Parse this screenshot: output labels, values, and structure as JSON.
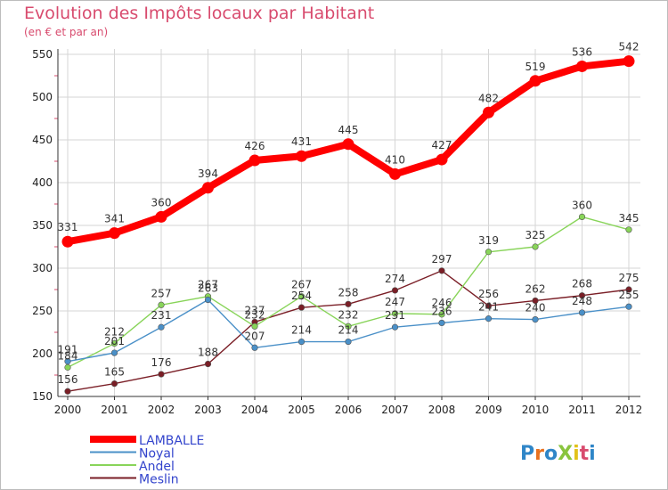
{
  "title": "Evolution des Impôts locaux par Habitant",
  "subtitle": "(en € et par an)",
  "logo": {
    "text": "ProXiti"
  },
  "chart_data": {
    "type": "line",
    "title": "Evolution des Impôts locaux par Habitant",
    "subtitle": "(en € et par an)",
    "x": [
      "2000",
      "2001",
      "2002",
      "2003",
      "2004",
      "2005",
      "2006",
      "2007",
      "2008",
      "2009",
      "2010",
      "2011",
      "2012"
    ],
    "ylim": [
      150,
      550
    ],
    "yticks": [
      150,
      200,
      250,
      300,
      350,
      400,
      450,
      500,
      550
    ],
    "grid": true,
    "legend_position": "bottom-left",
    "series": [
      {
        "name": "LAMBALLE",
        "color": "#ff0000",
        "values": [
          331,
          341,
          360,
          394,
          426,
          431,
          445,
          410,
          427,
          482,
          519,
          536,
          542
        ]
      },
      {
        "name": "Noyal",
        "color": "#4a90c8",
        "values": [
          191,
          201,
          231,
          263,
          207,
          214,
          214,
          231,
          236,
          241,
          240,
          248,
          255
        ]
      },
      {
        "name": "Andel",
        "color": "#88d459",
        "values": [
          184,
          212,
          257,
          267,
          232,
          267,
          232,
          247,
          246,
          319,
          325,
          360,
          345
        ]
      },
      {
        "name": "Meslin",
        "color": "#7a1e26",
        "values": [
          156,
          165,
          176,
          188,
          237,
          254,
          258,
          274,
          297,
          256,
          262,
          268,
          275
        ]
      }
    ]
  }
}
